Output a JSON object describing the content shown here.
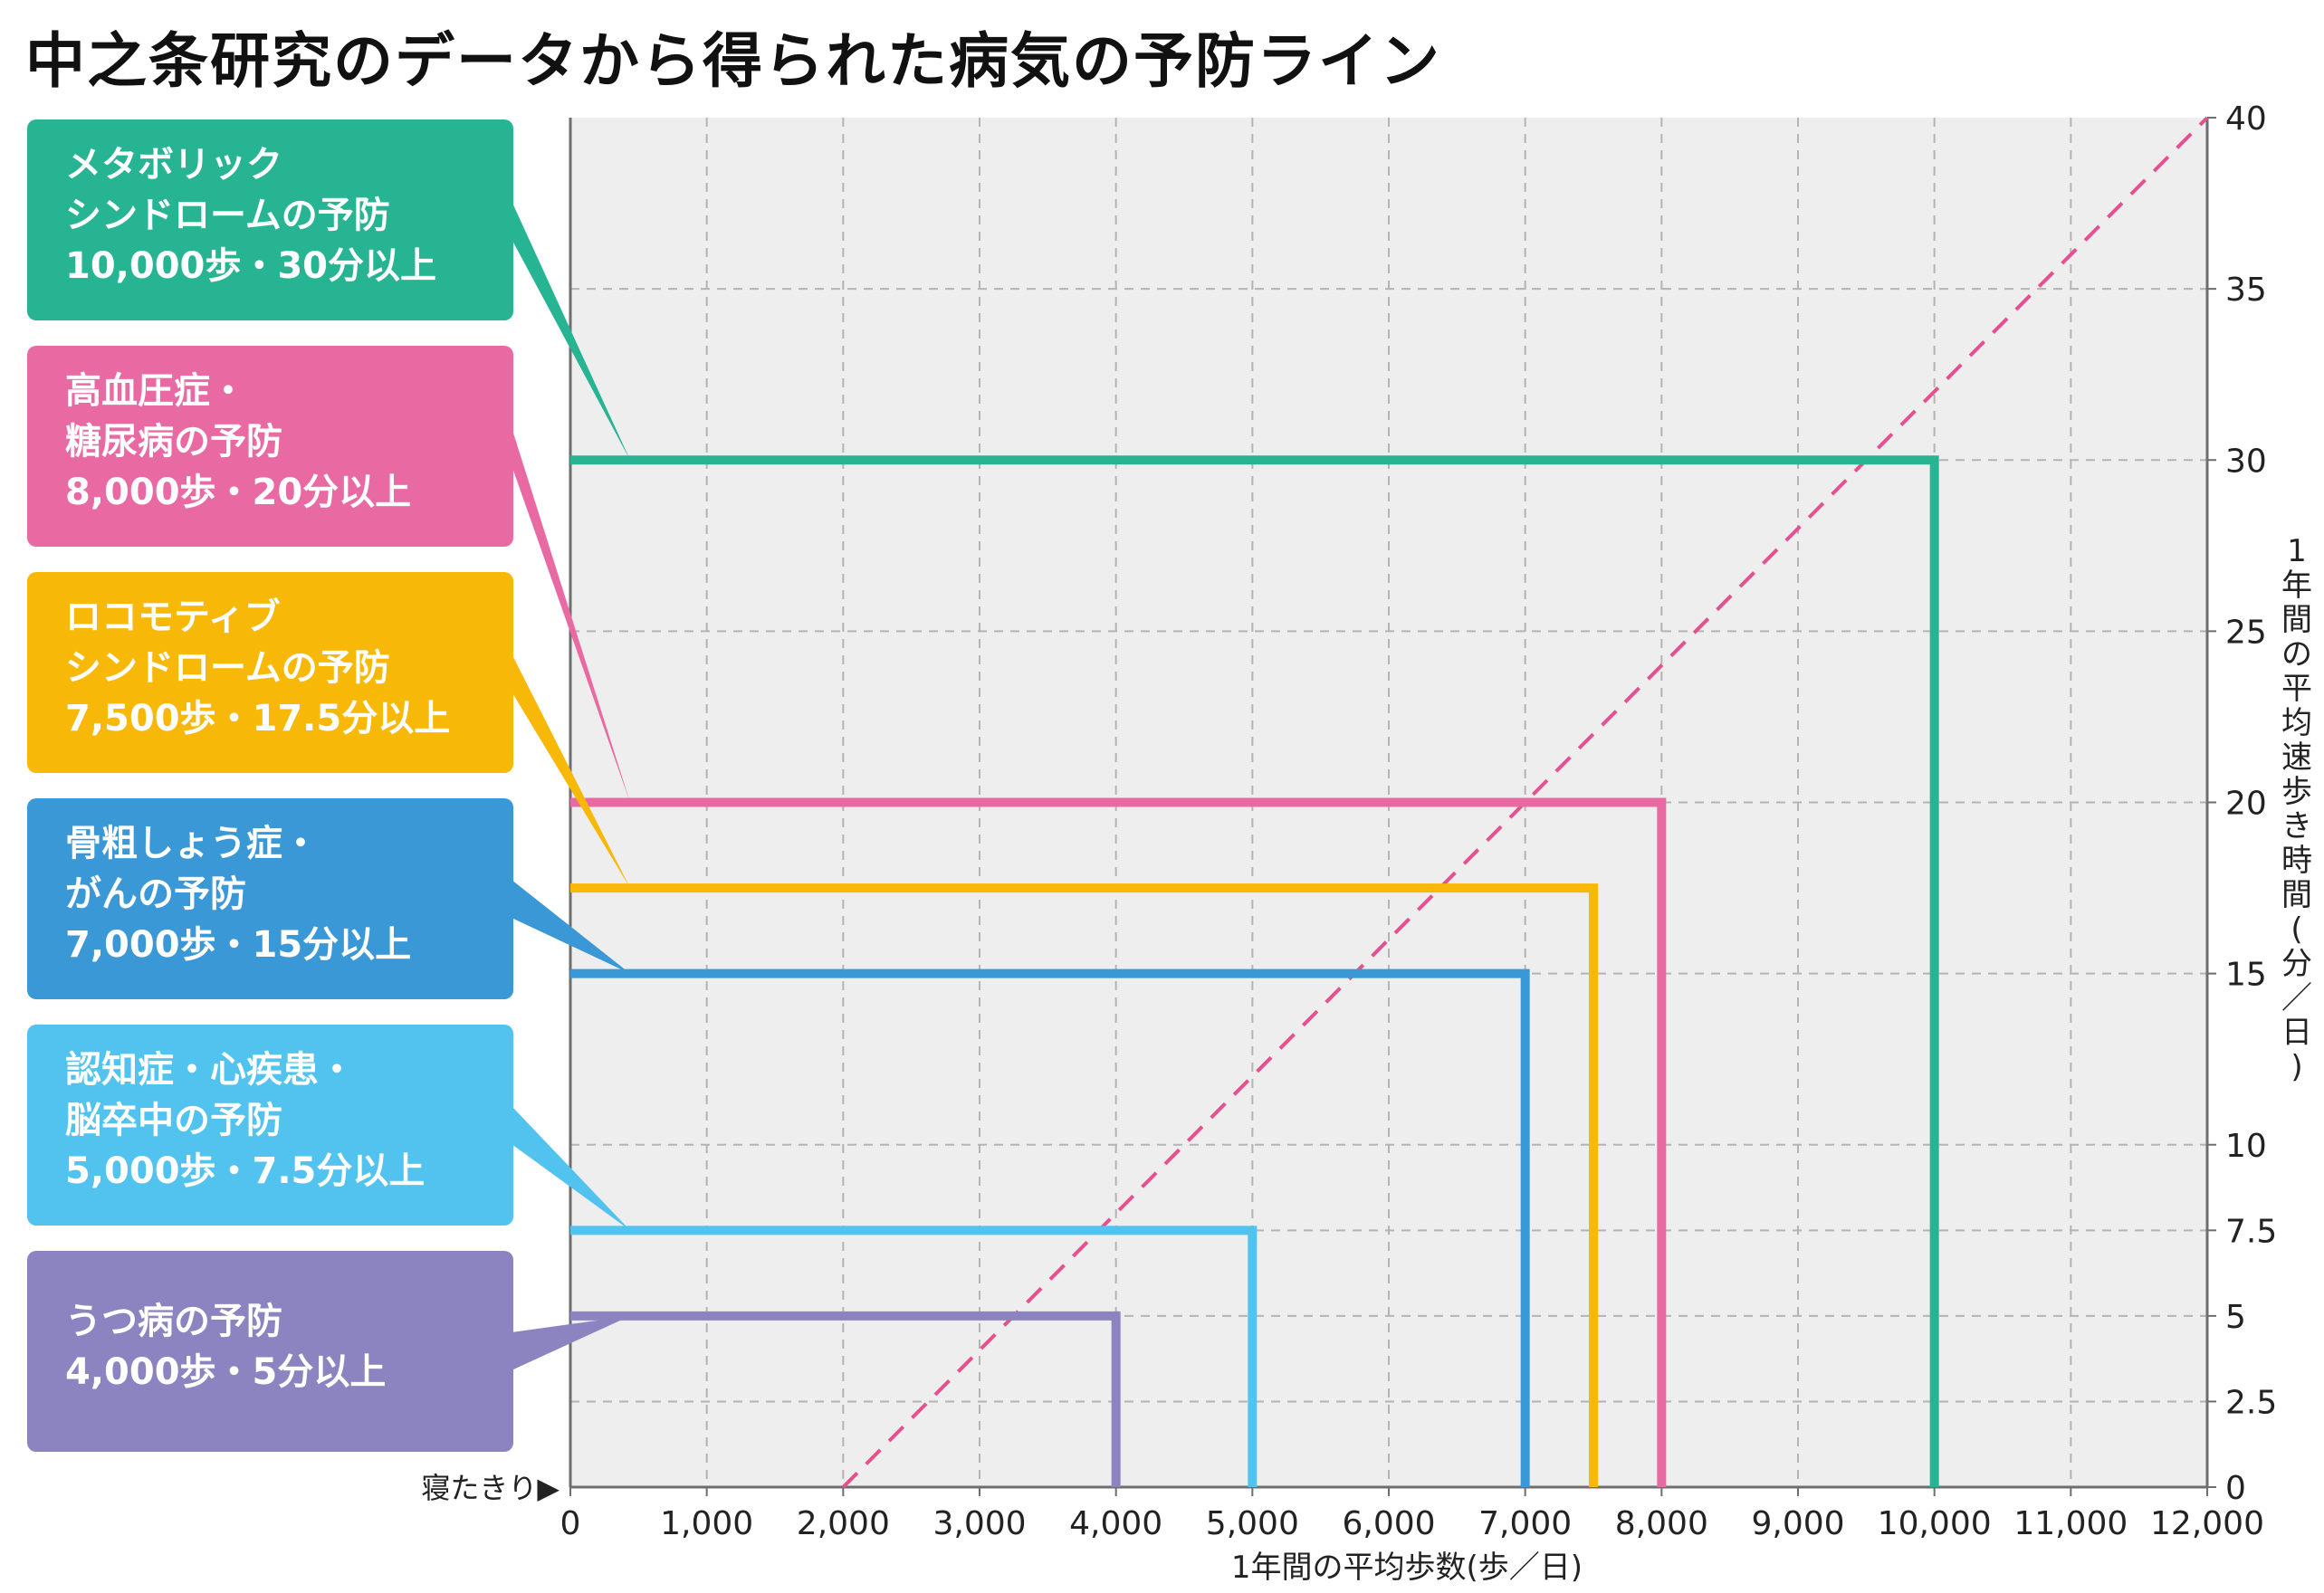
{
  "title": "中之条研究のデータから得られた病気の予防ライン",
  "colors": {
    "plot_bg": "#eeeeee",
    "grid": "#b4b4b4",
    "axis": "#6e6e6e",
    "diagonal": "#e6508f"
  },
  "chart_data": {
    "type": "line",
    "title": "中之条研究のデータから得られた病気の予防ライン",
    "xlabel": "1年間の平均歩数(歩／日)",
    "ylabel": "1年間の平均速歩き時間(分／日)",
    "x_start_label": "寝たきり▶",
    "xlim": [
      0,
      12000
    ],
    "ylim": [
      0,
      40
    ],
    "x_ticks": [
      0,
      1000,
      2000,
      3000,
      4000,
      5000,
      6000,
      7000,
      8000,
      9000,
      10000,
      11000,
      12000
    ],
    "x_tick_labels": [
      "0",
      "1,000",
      "2,000",
      "3,000",
      "4,000",
      "5,000",
      "6,000",
      "7,000",
      "8,000",
      "9,000",
      "10,000",
      "11,000",
      "12,000"
    ],
    "y_ticks": [
      0,
      2.5,
      5,
      7.5,
      10,
      15,
      20,
      25,
      30,
      35,
      40
    ],
    "y_tick_labels": [
      "0",
      "2.5",
      "5",
      "7.5",
      "10",
      "15",
      "20",
      "25",
      "30",
      "35",
      "40"
    ],
    "grid": true,
    "diagonal": {
      "x": [
        2000,
        12000
      ],
      "y": [
        0,
        40
      ],
      "style": "dashed"
    },
    "series": [
      {
        "name": "メタボリック シンドロームの予防",
        "steps": 10000,
        "minutes": 30,
        "color": "#26b493",
        "lines": [
          "メタボリック",
          "シンドロームの予防",
          "10,000歩・30分以上"
        ]
      },
      {
        "name": "高血圧症・糖尿病の予防",
        "steps": 8000,
        "minutes": 20,
        "color": "#e96aa3",
        "lines": [
          "高血圧症・",
          "糖尿病の予防",
          "8,000歩・20分以上"
        ]
      },
      {
        "name": "ロコモティブ シンドロームの予防",
        "steps": 7500,
        "minutes": 17.5,
        "color": "#f8b808",
        "lines": [
          "ロコモティブ",
          "シンドロームの予防",
          "7,500歩・17.5分以上"
        ]
      },
      {
        "name": "骨粗しょう症・がんの予防",
        "steps": 7000,
        "minutes": 15,
        "color": "#3a98d6",
        "lines": [
          "骨粗しょう症・",
          "がんの予防",
          "7,000歩・15分以上"
        ]
      },
      {
        "name": "認知症・心疾患・脳卒中の予防",
        "steps": 5000,
        "minutes": 7.5,
        "color": "#52c2ee",
        "lines": [
          "認知症・心疾患・",
          "脳卒中の予防",
          "5,000歩・7.5分以上"
        ]
      },
      {
        "name": "うつ病の予防",
        "steps": 4000,
        "minutes": 5,
        "color": "#8c84c0",
        "lines": [
          "うつ病の予防",
          "4,000歩・5分以上"
        ]
      }
    ]
  }
}
